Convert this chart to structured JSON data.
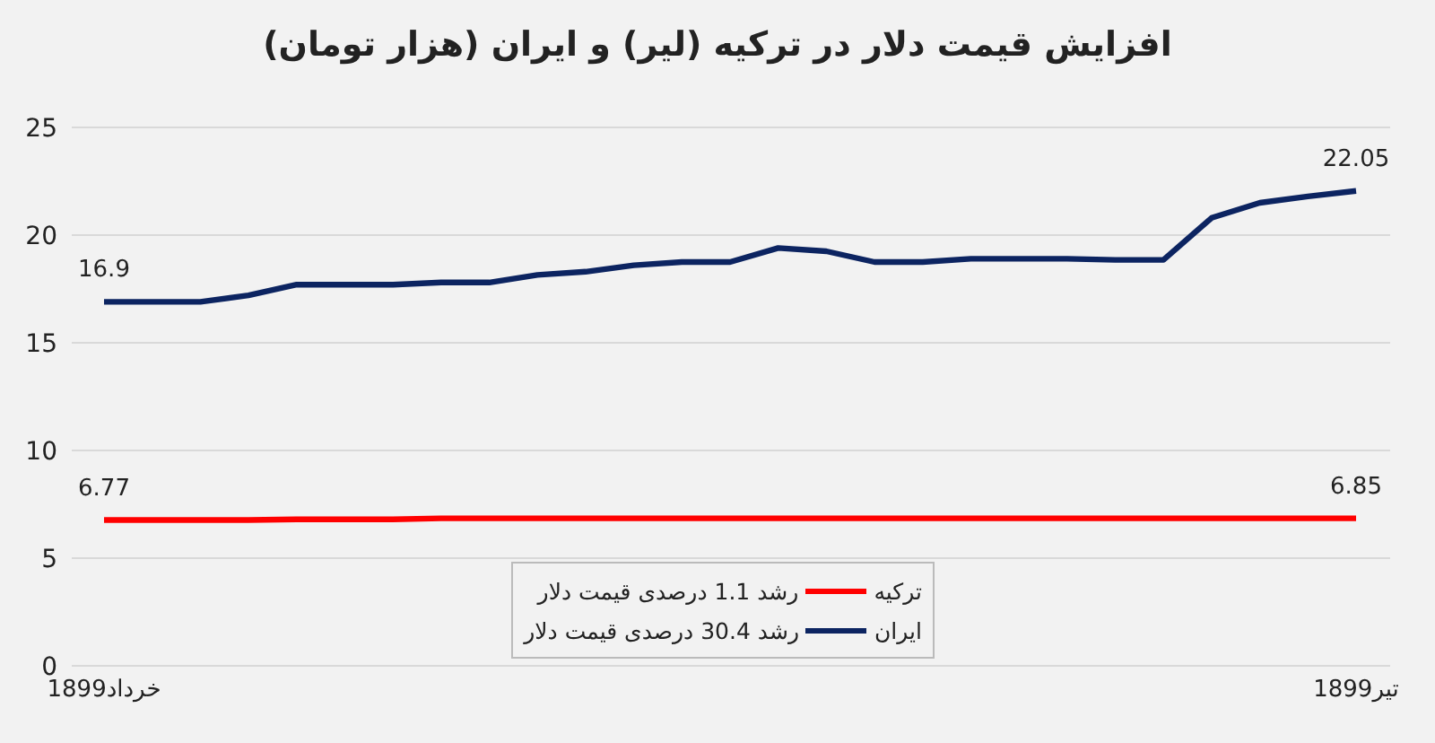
{
  "chart_data": {
    "type": "line",
    "title": "افزایش قیمت دلار در ترکیه (لیر) و ایران (هزار تومان)",
    "categories": [
      "18خرداد99",
      null,
      null,
      null,
      null,
      null,
      null,
      null,
      null,
      null,
      null,
      null,
      null,
      null,
      null,
      null,
      null,
      null,
      null,
      null,
      null,
      null,
      null,
      null,
      null,
      null,
      "18تیر99"
    ],
    "series": [
      {
        "name": "ترکیه",
        "color": "#ff0000",
        "values": [
          6.77,
          6.77,
          6.77,
          6.77,
          6.8,
          6.8,
          6.8,
          6.85,
          6.85,
          6.85,
          6.85,
          6.85,
          6.85,
          6.85,
          6.85,
          6.85,
          6.85,
          6.85,
          6.85,
          6.85,
          6.85,
          6.85,
          6.85,
          6.85,
          6.85,
          6.85,
          6.85
        ],
        "value_labels": [
          "6.77",
          null,
          null,
          null,
          null,
          null,
          null,
          null,
          null,
          null,
          null,
          null,
          null,
          null,
          null,
          null,
          null,
          null,
          null,
          null,
          null,
          null,
          null,
          null,
          null,
          null,
          "6.85"
        ]
      },
      {
        "name": "ایران",
        "color": "#0c2461",
        "values": [
          16.9,
          16.9,
          16.9,
          17.2,
          17.7,
          17.7,
          17.7,
          17.8,
          17.8,
          18.15,
          18.3,
          18.6,
          18.75,
          18.75,
          19.4,
          19.25,
          18.75,
          18.75,
          18.9,
          18.9,
          18.9,
          18.85,
          18.85,
          20.8,
          21.5,
          21.8,
          22.05
        ],
        "value_labels": [
          "16.9",
          null,
          null,
          null,
          null,
          null,
          null,
          null,
          null,
          null,
          null,
          null,
          null,
          null,
          null,
          null,
          null,
          null,
          null,
          null,
          null,
          null,
          null,
          null,
          null,
          null,
          "22.05"
        ]
      }
    ],
    "annotations": [
      "رشد 1.1 درصدی قیمت دلار",
      "رشد 30.4 درصدی قیمت دلار"
    ],
    "ylim": [
      0,
      25
    ],
    "yticks": [
      0,
      5,
      10,
      15,
      20,
      25
    ],
    "grid": "y",
    "legend": "bottom",
    "marker": "none",
    "line_style": "solid"
  }
}
